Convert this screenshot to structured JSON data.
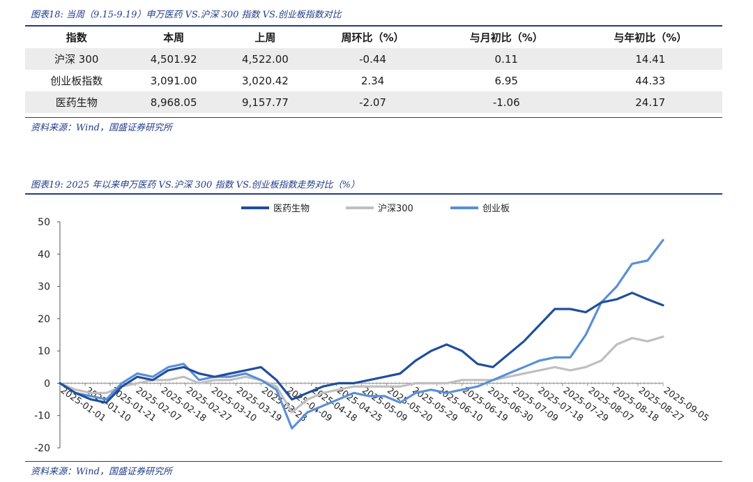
{
  "table": {
    "caption": "图表18: 当周（9.15-9.19）申万医药 VS.沪深 300 指数 VS.创业板指数对比",
    "headers": [
      "指数",
      "本周",
      "上周",
      "周环比（%）",
      "与月初比（%）",
      "与年初比（%）"
    ],
    "rows": [
      [
        "沪深 300",
        "4,501.92",
        "4,522.00",
        "-0.44",
        "0.11",
        "14.41"
      ],
      [
        "创业板指数",
        "3,091.00",
        "3,020.42",
        "2.34",
        "6.95",
        "44.33"
      ],
      [
        "医药生物",
        "8,968.05",
        "9,157.77",
        "-2.07",
        "-1.06",
        "24.17"
      ]
    ],
    "source": "资料来源：Wind，国盛证券研究所"
  },
  "chart_caption": "图表19: 2025 年以来申万医药 VS.沪深 300 指数 VS.创业板指数走势对比（%）",
  "chart_source": "资料来源：Wind，国盛证券研究所",
  "chart_data": {
    "type": "line",
    "x_tick_labels": [
      "2025-01-01",
      "2025-01-10",
      "2025-01-21",
      "2025-02-07",
      "2025-02-18",
      "2025-02-27",
      "2025-03-10",
      "2025-03-19",
      "2025-03-28",
      "2025-04-09",
      "2025-04-18",
      "2025-04-25",
      "2025-05-09",
      "2025-05-20",
      "2025-05-29",
      "2025-06-10",
      "2025-06-19",
      "2025-06-30",
      "2025-07-09",
      "2025-07-18",
      "2025-07-29",
      "2025-08-07",
      "2025-08-18",
      "2025-08-27",
      "2025-09-05"
    ],
    "ylim": [
      -20,
      50
    ],
    "yticks": [
      -20,
      -10,
      0,
      10,
      20,
      30,
      40,
      50
    ],
    "legend_position": "top",
    "series": [
      {
        "name": "医药生物",
        "color": "#1f4e9c",
        "values": [
          0,
          -3,
          -5,
          -6,
          -1,
          2,
          1,
          4,
          5,
          3,
          2,
          3,
          4,
          5,
          1,
          -5,
          -3,
          -1,
          0,
          0,
          1,
          2,
          3,
          7,
          10,
          12,
          10,
          6,
          5,
          9,
          13,
          18,
          23,
          23,
          22,
          25,
          26,
          28,
          26,
          24.17
        ]
      },
      {
        "name": "沪深300",
        "color": "#bfbfbf",
        "values": [
          0,
          -2,
          -3,
          -3,
          -1,
          0,
          1,
          1,
          2,
          0,
          1,
          1,
          2,
          1,
          -1,
          -9,
          -5,
          -3,
          -2,
          -1,
          -1,
          -1,
          -1,
          0,
          0,
          0,
          1,
          1,
          1,
          2,
          3,
          4,
          5,
          4,
          5,
          7,
          12,
          14,
          13,
          14.41
        ]
      },
      {
        "name": "创业板",
        "color": "#5b8fd6",
        "values": [
          0,
          -3,
          -4,
          -5,
          0,
          3,
          2,
          5,
          6,
          1,
          2,
          2,
          3,
          1,
          -2,
          -14,
          -9,
          -7,
          -5,
          -3,
          -4,
          -4,
          -6,
          -3,
          -2,
          -3,
          -2,
          -1,
          1,
          3,
          5,
          7,
          8,
          8,
          15,
          25,
          30,
          37,
          38,
          44.33
        ]
      }
    ]
  }
}
